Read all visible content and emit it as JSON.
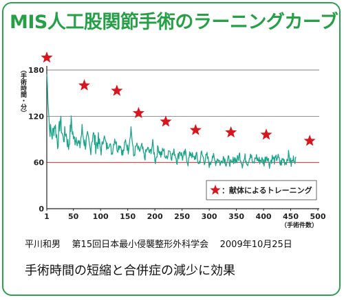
{
  "title": "MIS人工股関節手術のラーニングカーブ",
  "caption": {
    "author": "平川和男",
    "conference": "第15回日本最小侵襲整形外科学会",
    "date": "2009年10月25日"
  },
  "headline": "手術時間の短縮と合併症の減少に効果",
  "colors": {
    "title": "#25a046",
    "series": "#1aa58a",
    "reference_line": "#d42b2b",
    "star": "#d7161d",
    "frame": "#2e9e4f"
  },
  "chart_data": {
    "type": "line",
    "ylabel": "（手術時間・分）",
    "xlabel": "（手術件数）",
    "xlim": [
      1,
      500
    ],
    "ylim": [
      0,
      180
    ],
    "xticks": [
      "1",
      "50",
      "100",
      "150",
      "200",
      "250",
      "300",
      "350",
      "400",
      "450",
      "500"
    ],
    "yticks": [
      "0",
      "60",
      "120",
      "180"
    ],
    "grid": "horizontal",
    "reference_line": 60,
    "legend": {
      "placement": "bottom-right",
      "label": "：献体によるトレーニング"
    },
    "series": [
      {
        "values_sampled_every_5_cases": [
          175,
          105,
          95,
          110,
          85,
          115,
          90,
          100,
          80,
          112,
          88,
          95,
          78,
          102,
          84,
          90,
          76,
          98,
          82,
          88,
          74,
          95,
          80,
          86,
          72,
          92,
          78,
          84,
          70,
          88,
          76,
          105,
          68,
          82,
          74,
          80,
          66,
          78,
          72,
          84,
          62,
          80,
          70,
          76,
          64,
          78,
          68,
          74,
          62,
          76,
          66,
          72,
          60,
          74,
          64,
          70,
          58,
          72,
          62,
          68,
          56,
          70,
          60,
          66,
          58,
          68,
          60,
          64,
          56,
          66,
          62,
          70,
          58,
          66,
          60,
          72,
          56,
          68,
          62,
          64,
          60,
          70,
          58,
          66,
          62,
          68,
          58,
          64,
          60,
          70,
          58,
          66,
          62,
          64,
          60,
          68,
          58,
          64,
          60,
          62
        ]
      }
    ],
    "training_markers": [
      {
        "x": 1,
        "y": 196
      },
      {
        "x": 70,
        "y": 160
      },
      {
        "x": 130,
        "y": 153
      },
      {
        "x": 170,
        "y": 124
      },
      {
        "x": 220,
        "y": 113
      },
      {
        "x": 275,
        "y": 102
      },
      {
        "x": 340,
        "y": 99
      },
      {
        "x": 405,
        "y": 96
      },
      {
        "x": 485,
        "y": 88
      }
    ]
  }
}
